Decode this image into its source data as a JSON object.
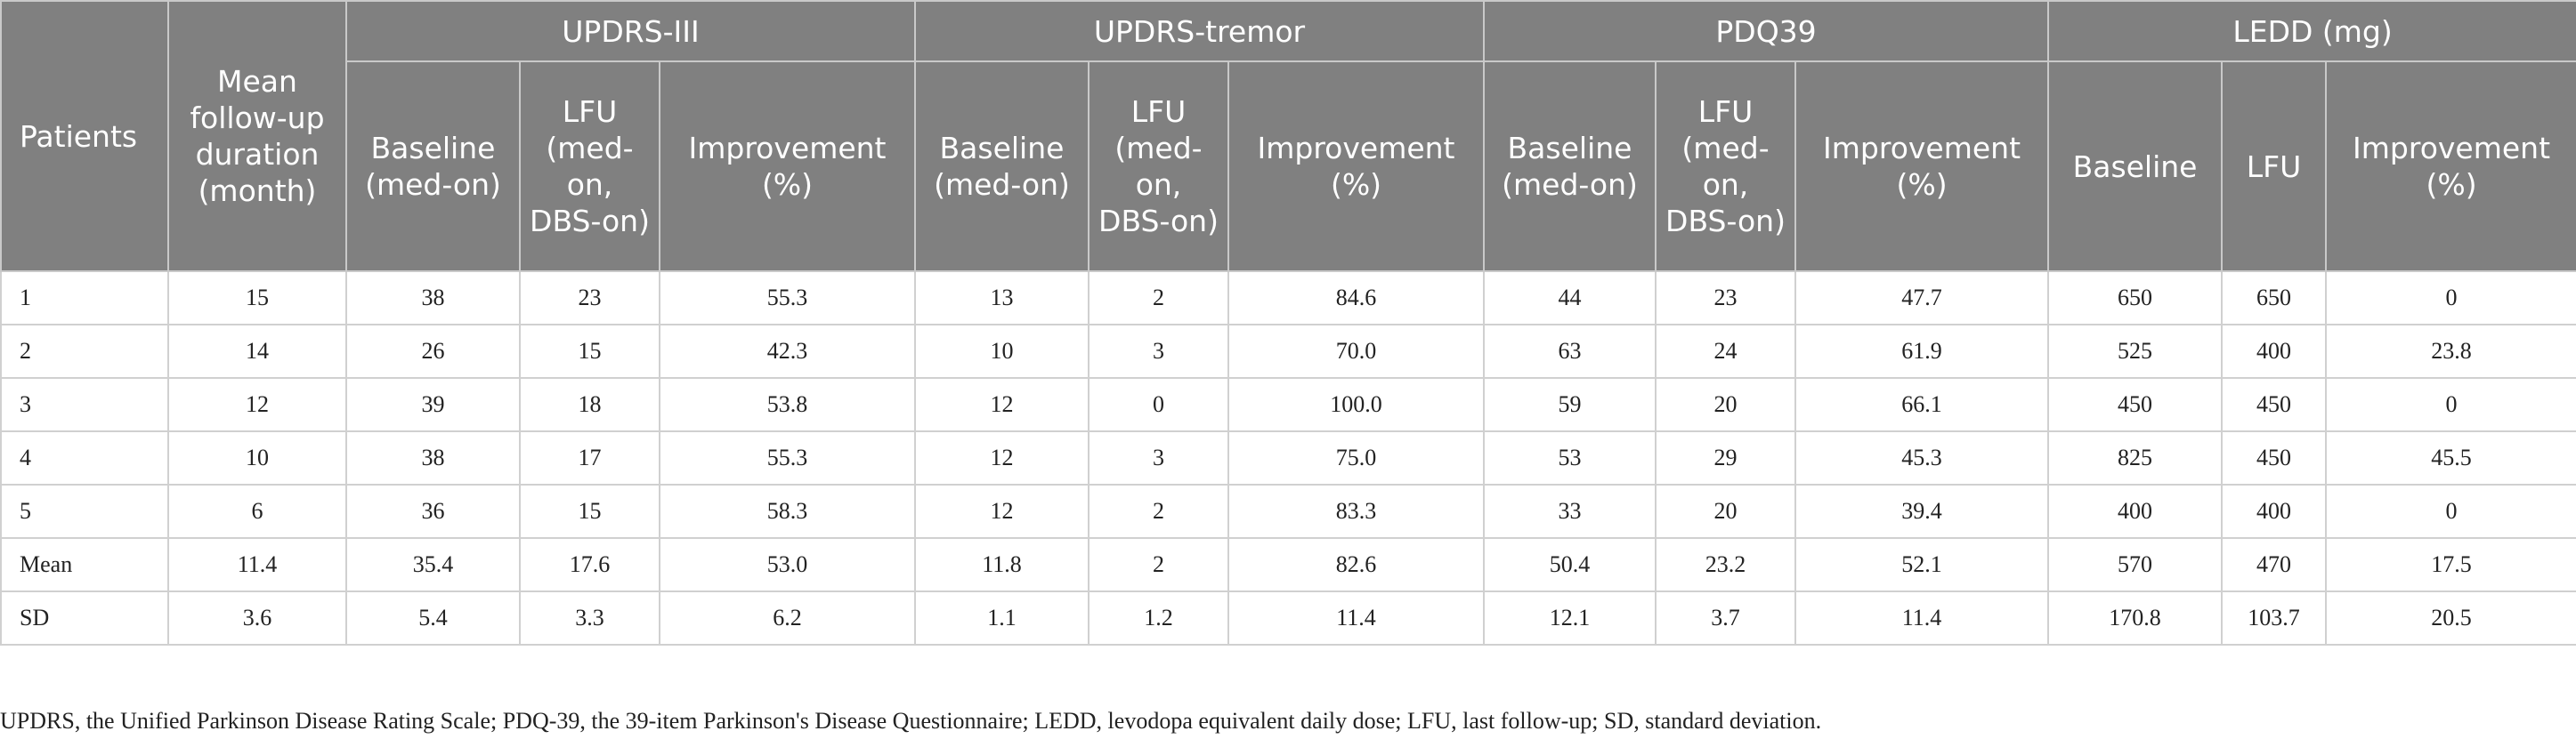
{
  "groups": {
    "patients": "Patients",
    "mean_followup": "Mean follow-up duration (month)",
    "updrs_iii": "UPDRS-III",
    "updrs_tremor": "UPDRS-tremor",
    "pdq39": "PDQ39",
    "ledd": "LEDD (mg)"
  },
  "subheaders": {
    "baseline_med_on": "Baseline (med-on)",
    "lfu_med_on_dbs_on": "LFU (med-on, DBS-on)",
    "improvement_pct": "Improvement (%)",
    "baseline": "Baseline",
    "lfu": "LFU"
  },
  "rows": [
    [
      "1",
      "15",
      "38",
      "23",
      "55.3",
      "13",
      "2",
      "84.6",
      "44",
      "23",
      "47.7",
      "650",
      "650",
      "0"
    ],
    [
      "2",
      "14",
      "26",
      "15",
      "42.3",
      "10",
      "3",
      "70.0",
      "63",
      "24",
      "61.9",
      "525",
      "400",
      "23.8"
    ],
    [
      "3",
      "12",
      "39",
      "18",
      "53.8",
      "12",
      "0",
      "100.0",
      "59",
      "20",
      "66.1",
      "450",
      "450",
      "0"
    ],
    [
      "4",
      "10",
      "38",
      "17",
      "55.3",
      "12",
      "3",
      "75.0",
      "53",
      "29",
      "45.3",
      "825",
      "450",
      "45.5"
    ],
    [
      "5",
      "6",
      "36",
      "15",
      "58.3",
      "12",
      "2",
      "83.3",
      "33",
      "20",
      "39.4",
      "400",
      "400",
      "0"
    ],
    [
      "Mean",
      "11.4",
      "35.4",
      "17.6",
      "53.0",
      "11.8",
      "2",
      "82.6",
      "50.4",
      "23.2",
      "52.1",
      "570",
      "470",
      "17.5"
    ],
    [
      "SD",
      "3.6",
      "5.4",
      "3.3",
      "6.2",
      "1.1",
      "1.2",
      "11.4",
      "12.1",
      "3.7",
      "11.4",
      "170.8",
      "103.7",
      "20.5"
    ]
  ],
  "footnote": "UPDRS, the Unified Parkinson Disease Rating Scale; PDQ-39, the 39-item Parkinson's Disease Questionnaire; LEDD, levodopa equivalent daily dose; LFU, last follow-up; SD, standard deviation."
}
